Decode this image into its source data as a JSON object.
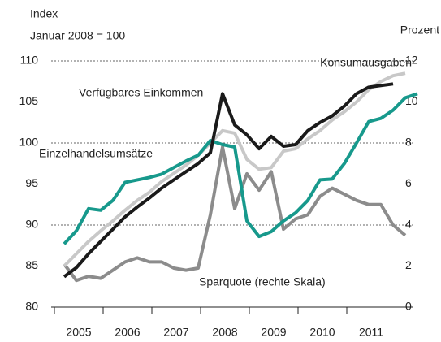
{
  "chart_data": {
    "type": "line",
    "labels": {
      "left_unit": "Index",
      "left_note": "Januar 2008 = 100",
      "right_unit": "Prozent"
    },
    "x": [
      2004.7,
      2004.95,
      2005.2,
      2005.45,
      2005.7,
      2005.95,
      2006.2,
      2006.45,
      2006.7,
      2006.95,
      2007.2,
      2007.45,
      2007.7,
      2007.95,
      2008.2,
      2008.45,
      2008.7,
      2008.95,
      2009.2,
      2009.45,
      2009.7,
      2009.95,
      2010.2,
      2010.45,
      2010.7,
      2010.95,
      2011.2,
      2011.45,
      2011.7,
      2011.95
    ],
    "xlim": [
      2004.4,
      2012.0
    ],
    "xticks": [
      2005,
      2006,
      2007,
      2008,
      2009,
      2010,
      2011
    ],
    "ylim": [
      80,
      110
    ],
    "yticks": [
      80,
      85,
      90,
      95,
      100,
      105,
      110
    ],
    "y2lim": [
      0,
      12
    ],
    "y2ticks": [
      0,
      2,
      4,
      6,
      8,
      10,
      12
    ],
    "grid": true,
    "series": [
      {
        "name": "Sparquote (rechte Skala)",
        "color": "#8c8c8c",
        "axis": "y2",
        "values": [
          2.1,
          1.3,
          1.5,
          1.4,
          1.8,
          2.2,
          2.4,
          2.2,
          2.2,
          1.9,
          1.8,
          1.9,
          4.5,
          7.8,
          4.8,
          6.5,
          5.7,
          6.6,
          3.8,
          4.3,
          4.5,
          5.4,
          5.8,
          5.5,
          5.2,
          5.0,
          5.0,
          4.0,
          3.5,
          null
        ]
      },
      {
        "name": "Konsumausgaben",
        "color": "#c8c8c8",
        "values": [
          85,
          86.5,
          88,
          89.3,
          90.5,
          91.8,
          93,
          94,
          95.3,
          96.3,
          97.3,
          98.5,
          100,
          101.5,
          101.2,
          98,
          96.8,
          97,
          99,
          99.3,
          100.5,
          101.5,
          102.8,
          103.8,
          105,
          106.5,
          107.5,
          108.2,
          108.5,
          null
        ]
      },
      {
        "name": "Einzelhandelsumsätze",
        "color": "#17998c",
        "values": [
          87.7,
          89.3,
          92,
          91.8,
          93,
          95.2,
          95.5,
          95.8,
          96.2,
          97,
          97.8,
          98.5,
          100.3,
          99.8,
          99.5,
          90.5,
          88.6,
          89.2,
          90.5,
          91.5,
          93,
          95.5,
          95.6,
          97.5,
          100,
          102.6,
          103,
          104,
          105.5,
          106
        ]
      },
      {
        "name": "Verfügbares Einkommen",
        "color": "#1a1a1a",
        "values": [
          83.7,
          84.8,
          86.5,
          88,
          89.5,
          91,
          92.2,
          93.3,
          94.5,
          95.5,
          96.5,
          97.5,
          98.8,
          106,
          102.2,
          101,
          99.3,
          100.8,
          99.6,
          99.8,
          101.5,
          102.5,
          103.3,
          104.5,
          106,
          106.8,
          107,
          107.2,
          null,
          null
        ]
      }
    ]
  }
}
